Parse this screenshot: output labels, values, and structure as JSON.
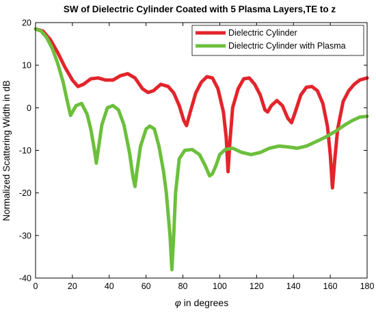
{
  "chart_data": {
    "type": "line",
    "title": "SW of Dielectric Cylinder Coated with 5 Plasma Layers,TE to z",
    "xlabel_symbol": "φ",
    "xlabel_rest": " in degrees",
    "ylabel": "Normalized Scattering Width in dB",
    "xlim": [
      0,
      180
    ],
    "ylim": [
      -40,
      20
    ],
    "xticks": [
      0,
      20,
      40,
      60,
      80,
      100,
      120,
      140,
      160,
      180
    ],
    "yticks": [
      -40,
      -30,
      -20,
      -10,
      0,
      10,
      20
    ],
    "legend_position": "top-right",
    "grid": false,
    "series": [
      {
        "name": "Dielectric Cylinder",
        "color": "#e3242b",
        "points": [
          [
            0,
            18.5
          ],
          [
            4,
            18.0
          ],
          [
            8,
            16.0
          ],
          [
            12,
            13.0
          ],
          [
            16,
            9.5
          ],
          [
            20,
            6.5
          ],
          [
            23,
            5.0
          ],
          [
            26,
            5.5
          ],
          [
            30,
            6.8
          ],
          [
            34,
            7.0
          ],
          [
            38,
            6.5
          ],
          [
            42,
            6.5
          ],
          [
            46,
            7.5
          ],
          [
            50,
            8.0
          ],
          [
            54,
            7.0
          ],
          [
            58,
            4.5
          ],
          [
            61,
            3.6
          ],
          [
            64,
            4.0
          ],
          [
            68,
            5.5
          ],
          [
            72,
            5.0
          ],
          [
            75,
            3.5
          ],
          [
            78,
            0.5
          ],
          [
            80.5,
            -3.0
          ],
          [
            82,
            -4.2
          ],
          [
            84,
            -1.0
          ],
          [
            87,
            3.5
          ],
          [
            90,
            6.0
          ],
          [
            93,
            7.3
          ],
          [
            96,
            7.0
          ],
          [
            99,
            4.5
          ],
          [
            102,
            -1.0
          ],
          [
            103.5,
            -7.0
          ],
          [
            104.5,
            -15.0
          ],
          [
            105.5,
            -8.0
          ],
          [
            107,
            0.0
          ],
          [
            110,
            4.5
          ],
          [
            113,
            6.8
          ],
          [
            116,
            7.0
          ],
          [
            119,
            5.5
          ],
          [
            122,
            3.0
          ],
          [
            124.5,
            -0.5
          ],
          [
            126,
            -1.0
          ],
          [
            128,
            0.5
          ],
          [
            131,
            1.7
          ],
          [
            134,
            0.5
          ],
          [
            137,
            -2.5
          ],
          [
            139,
            -3.5
          ],
          [
            141,
            -1.0
          ],
          [
            144,
            3.0
          ],
          [
            147,
            4.8
          ],
          [
            150,
            5.0
          ],
          [
            153,
            4.0
          ],
          [
            156,
            1.0
          ],
          [
            158.5,
            -4.5
          ],
          [
            160,
            -11.0
          ],
          [
            161.2,
            -18.8
          ],
          [
            162.5,
            -12.0
          ],
          [
            164,
            -5.0
          ],
          [
            167,
            1.5
          ],
          [
            170,
            4.0
          ],
          [
            173,
            5.5
          ],
          [
            176,
            6.5
          ],
          [
            180,
            7.0
          ]
        ]
      },
      {
        "name": "Dielectric Cylinder with Plasma",
        "color": "#6cbf3c",
        "points": [
          [
            0,
            18.5
          ],
          [
            3,
            18.0
          ],
          [
            6,
            16.5
          ],
          [
            9,
            14.0
          ],
          [
            12,
            10.5
          ],
          [
            15,
            6.0
          ],
          [
            17,
            2.0
          ],
          [
            19,
            -1.8
          ],
          [
            20,
            -1.0
          ],
          [
            22,
            0.5
          ],
          [
            25,
            1.0
          ],
          [
            28,
            -1.5
          ],
          [
            30,
            -5.0
          ],
          [
            32,
            -10.0
          ],
          [
            33,
            -13.0
          ],
          [
            34,
            -10.0
          ],
          [
            36,
            -4.0
          ],
          [
            39,
            0.0
          ],
          [
            42,
            0.5
          ],
          [
            45,
            -0.5
          ],
          [
            48,
            -4.0
          ],
          [
            51,
            -10.5
          ],
          [
            53,
            -16.5
          ],
          [
            54,
            -18.5
          ],
          [
            55,
            -15.0
          ],
          [
            57,
            -9.0
          ],
          [
            60,
            -5.0
          ],
          [
            62,
            -4.3
          ],
          [
            64.5,
            -5.0
          ],
          [
            67,
            -9.0
          ],
          [
            69.5,
            -15.0
          ],
          [
            71,
            -20.0
          ],
          [
            73,
            -30.0
          ],
          [
            74,
            -38.0
          ],
          [
            75,
            -30.0
          ],
          [
            76,
            -20.0
          ],
          [
            78,
            -12.0
          ],
          [
            81,
            -10.0
          ],
          [
            85,
            -9.8
          ],
          [
            89,
            -11.0
          ],
          [
            92,
            -13.5
          ],
          [
            94.5,
            -16.0
          ],
          [
            96,
            -15.5
          ],
          [
            98,
            -13.5
          ],
          [
            100,
            -11.0
          ],
          [
            103,
            -9.8
          ],
          [
            107,
            -9.5
          ],
          [
            112,
            -10.5
          ],
          [
            117,
            -11.0
          ],
          [
            122,
            -10.5
          ],
          [
            127,
            -9.5
          ],
          [
            132,
            -9.0
          ],
          [
            137,
            -9.2
          ],
          [
            142,
            -9.5
          ],
          [
            147,
            -9.0
          ],
          [
            152,
            -8.0
          ],
          [
            157,
            -7.0
          ],
          [
            163,
            -5.5
          ],
          [
            168,
            -4.0
          ],
          [
            172,
            -3.0
          ],
          [
            176,
            -2.2
          ],
          [
            180,
            -2.0
          ]
        ]
      }
    ]
  }
}
